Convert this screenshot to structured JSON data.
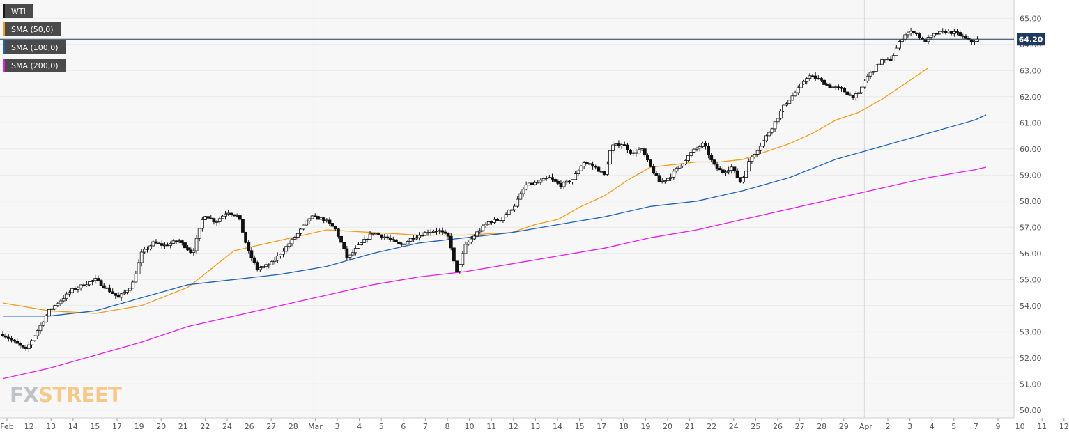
{
  "chart_data": {
    "type": "candlestick",
    "symbol": "WTI",
    "legend": [
      {
        "label": "WTI",
        "color": "#1a1a1a"
      },
      {
        "label": "SMA (50,0)",
        "color": "#f59b1d"
      },
      {
        "label": "SMA (100,0)",
        "color": "#1f63b7"
      },
      {
        "label": "SMA (200,0)",
        "color": "#e51ce3"
      }
    ],
    "last_price": 64.2,
    "last_price_label": "64.20",
    "ylim": [
      49.7,
      65.7
    ],
    "y_ticks": [
      "50.00",
      "51.00",
      "52.00",
      "53.00",
      "54.00",
      "55.00",
      "56.00",
      "57.00",
      "58.00",
      "59.00",
      "60.00",
      "61.00",
      "62.00",
      "63.00",
      "64.00",
      "65.00"
    ],
    "x_ticks": [
      "Feb",
      "12",
      "13",
      "14",
      "15",
      "17",
      "19",
      "20",
      "21",
      "22",
      "24",
      "26",
      "27",
      "28",
      "Mar",
      "3",
      "4",
      "5",
      "6",
      "7",
      "8",
      "10",
      "11",
      "12",
      "13",
      "14",
      "15",
      "17",
      "18",
      "19",
      "20",
      "21",
      "22",
      "24",
      "25",
      "26",
      "27",
      "28",
      "29",
      "Apr",
      "2",
      "3",
      "4",
      "5",
      "7",
      "9",
      "10",
      "11",
      "12"
    ],
    "sessions": 43,
    "close_anchors": [
      [
        0,
        52.9
      ],
      [
        1,
        52.3
      ],
      [
        2,
        53.8
      ],
      [
        3,
        54.6
      ],
      [
        4,
        55.0
      ],
      [
        5,
        54.3
      ],
      [
        5.6,
        54.8
      ],
      [
        6,
        56.0
      ],
      [
        6.5,
        56.4
      ],
      [
        7,
        56.3
      ],
      [
        7.6,
        56.5
      ],
      [
        8.2,
        56.0
      ],
      [
        8.7,
        57.5
      ],
      [
        9.2,
        57.2
      ],
      [
        9.7,
        57.6
      ],
      [
        10.2,
        57.4
      ],
      [
        10.6,
        56.1
      ],
      [
        11.0,
        55.4
      ],
      [
        11.6,
        55.6
      ],
      [
        12.2,
        56.2
      ],
      [
        12.8,
        56.8
      ],
      [
        13.3,
        57.4
      ],
      [
        13.9,
        57.3
      ],
      [
        14.4,
        56.9
      ],
      [
        14.9,
        55.8
      ],
      [
        15.4,
        56.3
      ],
      [
        16.0,
        56.8
      ],
      [
        16.6,
        56.6
      ],
      [
        17.2,
        56.3
      ],
      [
        17.7,
        56.6
      ],
      [
        18.3,
        56.8
      ],
      [
        18.8,
        56.9
      ],
      [
        19.3,
        56.6
      ],
      [
        19.6,
        55.2
      ],
      [
        20.0,
        56.3
      ],
      [
        20.5,
        56.8
      ],
      [
        21.0,
        57.2
      ],
      [
        21.5,
        57.3
      ],
      [
        22.1,
        57.8
      ],
      [
        22.6,
        58.6
      ],
      [
        23.1,
        58.7
      ],
      [
        23.6,
        58.9
      ],
      [
        24.1,
        58.6
      ],
      [
        24.6,
        58.8
      ],
      [
        25.1,
        59.5
      ],
      [
        25.6,
        59.3
      ],
      [
        26.0,
        59.0
      ],
      [
        26.3,
        60.1
      ],
      [
        26.8,
        60.2
      ],
      [
        27.2,
        59.8
      ],
      [
        27.6,
        60.0
      ],
      [
        28.0,
        59.3
      ],
      [
        28.4,
        58.7
      ],
      [
        28.8,
        58.9
      ],
      [
        29.3,
        59.4
      ],
      [
        29.8,
        59.9
      ],
      [
        30.3,
        60.2
      ],
      [
        30.7,
        59.4
      ],
      [
        31.1,
        59.1
      ],
      [
        31.5,
        59.3
      ],
      [
        31.9,
        58.7
      ],
      [
        32.3,
        59.6
      ],
      [
        32.8,
        60.2
      ],
      [
        33.3,
        60.9
      ],
      [
        33.8,
        61.7
      ],
      [
        34.3,
        62.2
      ],
      [
        34.8,
        62.8
      ],
      [
        35.2,
        62.7
      ],
      [
        35.7,
        62.4
      ],
      [
        36.2,
        62.3
      ],
      [
        36.7,
        62.0
      ],
      [
        37.0,
        62.1
      ],
      [
        37.3,
        62.7
      ],
      [
        37.6,
        63.0
      ],
      [
        38.0,
        63.4
      ],
      [
        38.4,
        63.4
      ],
      [
        38.7,
        64.0
      ],
      [
        39.0,
        64.4
      ],
      [
        39.4,
        64.5
      ],
      [
        39.8,
        64.1
      ],
      [
        40.3,
        64.4
      ],
      [
        40.8,
        64.5
      ],
      [
        41.3,
        64.4
      ],
      [
        41.8,
        64.1
      ],
      [
        42.2,
        64.2
      ]
    ],
    "sma50": [
      [
        0,
        54.1
      ],
      [
        2,
        53.8
      ],
      [
        4,
        53.7
      ],
      [
        6,
        54.0
      ],
      [
        8,
        54.7
      ],
      [
        10,
        56.1
      ],
      [
        11,
        56.3
      ],
      [
        12,
        56.5
      ],
      [
        13,
        56.7
      ],
      [
        14,
        56.9
      ],
      [
        16,
        56.8
      ],
      [
        18,
        56.7
      ],
      [
        20,
        56.7
      ],
      [
        22,
        56.8
      ],
      [
        23,
        57.1
      ],
      [
        24,
        57.3
      ],
      [
        25,
        57.8
      ],
      [
        26,
        58.2
      ],
      [
        27,
        58.8
      ],
      [
        28,
        59.3
      ],
      [
        29,
        59.4
      ],
      [
        30,
        59.5
      ],
      [
        31,
        59.5
      ],
      [
        32,
        59.6
      ],
      [
        33,
        59.9
      ],
      [
        34,
        60.2
      ],
      [
        35,
        60.6
      ],
      [
        36,
        61.1
      ],
      [
        37,
        61.4
      ],
      [
        38,
        61.9
      ],
      [
        39,
        62.5
      ],
      [
        40,
        63.1
      ]
    ],
    "sma100": [
      [
        0,
        53.6
      ],
      [
        2,
        53.6
      ],
      [
        4,
        53.8
      ],
      [
        6,
        54.3
      ],
      [
        8,
        54.8
      ],
      [
        10,
        55.0
      ],
      [
        12,
        55.2
      ],
      [
        14,
        55.5
      ],
      [
        16,
        56.0
      ],
      [
        18,
        56.4
      ],
      [
        20,
        56.6
      ],
      [
        22,
        56.8
      ],
      [
        24,
        57.1
      ],
      [
        26,
        57.4
      ],
      [
        28,
        57.8
      ],
      [
        30,
        58.0
      ],
      [
        32,
        58.4
      ],
      [
        34,
        58.9
      ],
      [
        36,
        59.6
      ],
      [
        38,
        60.1
      ],
      [
        40,
        60.6
      ],
      [
        42,
        61.1
      ],
      [
        42.5,
        61.3
      ]
    ],
    "sma200": [
      [
        0,
        51.2
      ],
      [
        2,
        51.6
      ],
      [
        4,
        52.1
      ],
      [
        6,
        52.6
      ],
      [
        8,
        53.2
      ],
      [
        10,
        53.6
      ],
      [
        12,
        54.0
      ],
      [
        14,
        54.4
      ],
      [
        16,
        54.8
      ],
      [
        18,
        55.1
      ],
      [
        20,
        55.3
      ],
      [
        22,
        55.6
      ],
      [
        24,
        55.9
      ],
      [
        26,
        56.2
      ],
      [
        28,
        56.6
      ],
      [
        30,
        56.9
      ],
      [
        32,
        57.3
      ],
      [
        34,
        57.7
      ],
      [
        36,
        58.1
      ],
      [
        38,
        58.5
      ],
      [
        40,
        58.9
      ],
      [
        42,
        59.2
      ],
      [
        42.5,
        59.3
      ]
    ]
  },
  "watermark": {
    "fx": "FX",
    "street": "STREET"
  },
  "colors": {
    "grid": "#e9e9e9",
    "bg": "#f7f7f8",
    "price_line": "#1f3a5f",
    "price_tag": "#1f3a5f"
  }
}
